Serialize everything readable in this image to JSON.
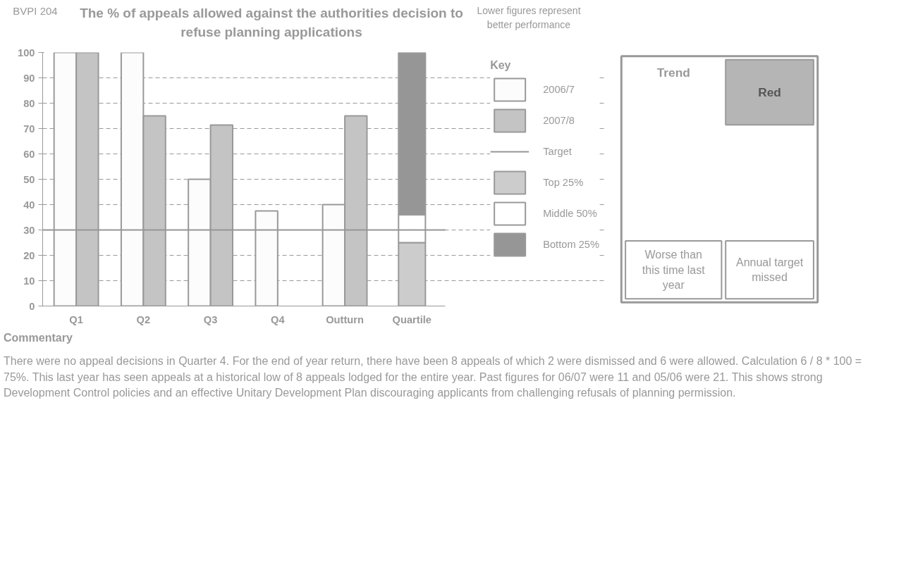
{
  "chart_data": [
    {
      "type": "bar",
      "title": "The % of appeals allowed against the authorities decision to refuse planning applications",
      "categories": [
        "Q1",
        "Q2",
        "Q3",
        "Q4",
        "Outturn",
        "Quartile"
      ],
      "series": [
        {
          "name": "2006/7",
          "color": "#fcfcfc",
          "values": [
            100,
            100,
            50,
            37.5,
            40,
            null
          ]
        },
        {
          "name": "2007/8",
          "color": "#c4c4c4",
          "values": [
            100,
            75,
            71.4,
            null,
            75,
            null
          ]
        },
        {
          "name": "Top 25%",
          "color": "#cccccc",
          "values": [
            null,
            null,
            null,
            null,
            null,
            25
          ],
          "base": [
            null,
            null,
            null,
            null,
            null,
            0
          ]
        },
        {
          "name": "Middle 50%",
          "color": "#ffffff",
          "values": [
            null,
            null,
            null,
            null,
            null,
            11
          ],
          "base": [
            null,
            null,
            null,
            null,
            null,
            25
          ]
        },
        {
          "name": "Bottom 25%",
          "color": "#969696",
          "values": [
            null,
            null,
            null,
            null,
            null,
            64
          ],
          "base": [
            null,
            null,
            null,
            null,
            null,
            36
          ]
        }
      ],
      "ylim": [
        0,
        100
      ],
      "yticks": [
        0,
        10,
        20,
        30,
        40,
        50,
        60,
        70,
        80,
        90,
        100
      ],
      "grid": "y",
      "legend": "right",
      "legend_title": "Key",
      "ref_lines": [
        {
          "axis": "y",
          "value": 30,
          "label": "Target",
          "color": "#969696"
        }
      ],
      "annotations": [
        "BVPI 204",
        "Lower figures represent better performance",
        "Commentary",
        "There were no appeal decisions in Quarter 4. For the end of year return, there have been 8 appeals of which 2 were dismissed and 6 were allowed. Calculation 6 / 8 * 100 = 75%. This last year has seen appeals at a historical low of 8 appeals lodged for the entire year. Past figures for 06/07 were 11 and 05/06 were 21. This shows strong Development Control policies and an effective Unitary Development Plan discouraging applicants from challenging refusals of planning permission."
      ]
    },
    {
      "type": "other",
      "title": "Trend",
      "annotations": [
        "Red",
        "Worse than this time last year",
        "Annual target missed"
      ]
    }
  ]
}
